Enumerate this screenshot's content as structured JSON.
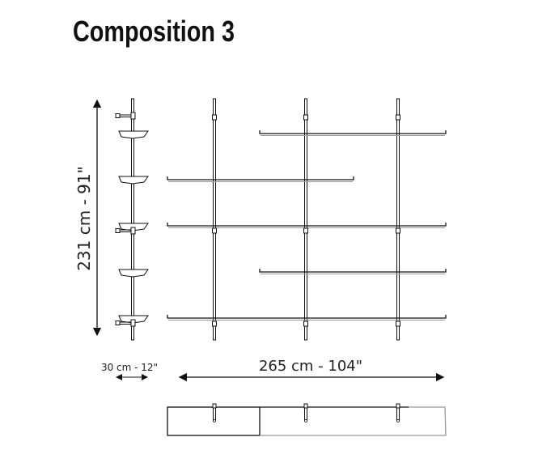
{
  "title": "Composition 3",
  "dimensions": {
    "height": "231 cm - 91\"",
    "depth": "30 cm - 12\"",
    "width": "265 cm - 104\""
  },
  "colors": {
    "line": "#111111",
    "shadow": "#999999"
  }
}
